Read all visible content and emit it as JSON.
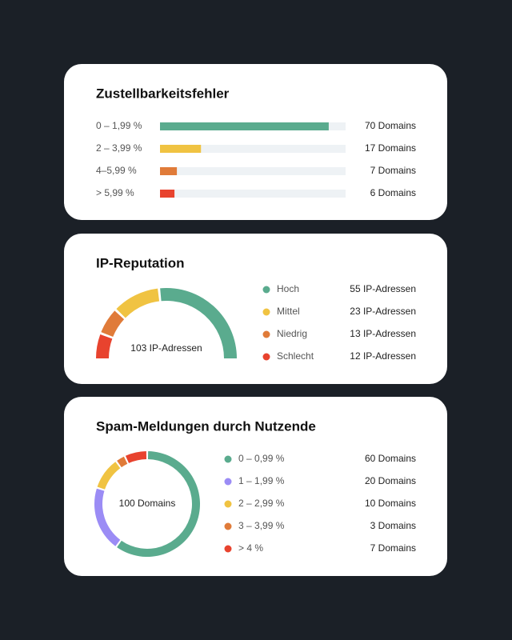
{
  "chart_data": [
    {
      "type": "bar",
      "title": "Zustellbarkeitsfehler",
      "categories": [
        "0 – 1,99 %",
        "2 – 3,99 %",
        "4–5,99 %",
        "> 5,99 %"
      ],
      "values": [
        70,
        17,
        7,
        6
      ],
      "value_labels": [
        "70 Domains",
        "17 Domains",
        "7 Domains",
        "6 Domains"
      ],
      "colors": [
        "#5aab8e",
        "#f0c342",
        "#e07b39",
        "#e8432e"
      ],
      "track_color": "#eef2f5",
      "xlim": [
        0,
        77
      ]
    },
    {
      "type": "half-donut",
      "title": "IP-Reputation",
      "center_label": "103 IP-Adressen",
      "categories": [
        "Hoch",
        "Mittel",
        "Niedrig",
        "Schlecht"
      ],
      "values": [
        55,
        23,
        13,
        12
      ],
      "value_labels": [
        "55 IP-Adressen",
        "23 IP-Adressen",
        "13 IP-Adressen",
        "12 IP-Adressen"
      ],
      "colors": [
        "#5aab8e",
        "#f0c342",
        "#e07b39",
        "#e8432e"
      ]
    },
    {
      "type": "donut",
      "title": "Spam-Meldungen durch Nutzende",
      "center_label": "100 Domains",
      "categories": [
        "0 – 0,99 %",
        "1 – 1,99 %",
        "2 – 2,99 %",
        "3 – 3,99 %",
        "> 4 %"
      ],
      "values": [
        60,
        20,
        10,
        3,
        7
      ],
      "value_labels": [
        "60 Domains",
        "20 Domains",
        "10 Domains",
        "3 Domains",
        "7 Domains"
      ],
      "colors": [
        "#5aab8e",
        "#9b8cf5",
        "#f0c342",
        "#e07b39",
        "#e8432e"
      ]
    }
  ]
}
